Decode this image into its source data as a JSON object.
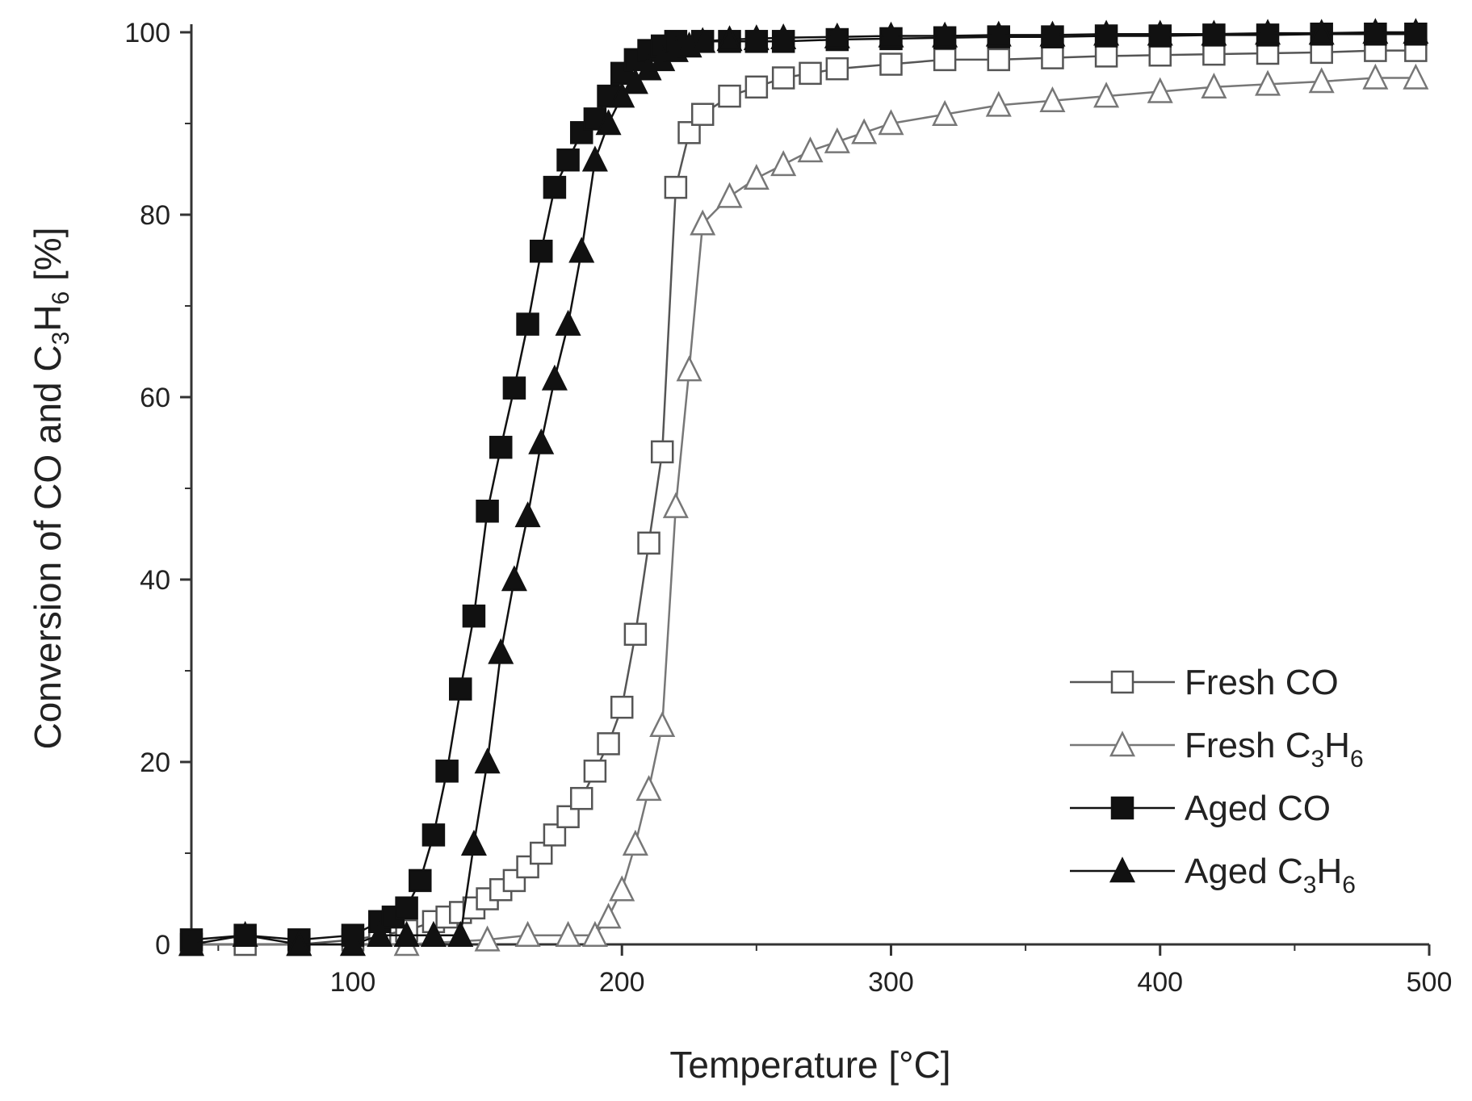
{
  "chart_data": {
    "type": "line",
    "xlabel": "Temperature [°C]",
    "ylabel": "Conversion of CO and C3H6 [%]",
    "xlim": [
      40,
      500
    ],
    "ylim": [
      0,
      100
    ],
    "xticks": [
      100,
      200,
      300,
      400,
      500
    ],
    "yticks": [
      0,
      20,
      40,
      60,
      80,
      100
    ],
    "grid": false,
    "legend_position": "bottom-right",
    "series": [
      {
        "name": "Fresh CO",
        "marker": "open-square",
        "color": "#555555",
        "x": [
          40,
          60,
          80,
          100,
          110,
          120,
          130,
          135,
          140,
          145,
          150,
          155,
          160,
          165,
          170,
          175,
          180,
          185,
          190,
          195,
          200,
          205,
          210,
          215,
          220,
          225,
          230,
          240,
          250,
          260,
          270,
          280,
          300,
          320,
          340,
          360,
          380,
          400,
          420,
          440,
          460,
          480,
          495
        ],
        "y": [
          0,
          0,
          0,
          0.5,
          1,
          1.5,
          2.5,
          3,
          3.5,
          4,
          5,
          6,
          7,
          8.5,
          10,
          12,
          14,
          16,
          19,
          22,
          26,
          34,
          44,
          54,
          83,
          89,
          91,
          93,
          94,
          95,
          95.5,
          96,
          96.5,
          97,
          97,
          97.2,
          97.4,
          97.5,
          97.6,
          97.7,
          97.8,
          98,
          98
        ]
      },
      {
        "name": "Fresh C3H6",
        "name_parts": [
          "Fresh C",
          "3",
          "H",
          "6"
        ],
        "marker": "open-triangle",
        "color": "#777777",
        "x": [
          40,
          80,
          120,
          150,
          165,
          180,
          190,
          195,
          200,
          205,
          210,
          215,
          220,
          225,
          230,
          240,
          250,
          260,
          270,
          280,
          290,
          300,
          320,
          340,
          360,
          380,
          400,
          420,
          440,
          460,
          480,
          495
        ],
        "y": [
          0,
          0,
          0,
          0.5,
          1,
          1,
          1,
          3,
          6,
          11,
          17,
          24,
          48,
          63,
          79,
          82,
          84,
          85.5,
          87,
          88,
          89,
          90,
          91,
          92,
          92.5,
          93,
          93.5,
          94,
          94.3,
          94.6,
          95,
          95
        ]
      },
      {
        "name": "Aged CO",
        "marker": "filled-square",
        "color": "#111111",
        "x": [
          40,
          60,
          80,
          100,
          110,
          115,
          120,
          125,
          130,
          135,
          140,
          145,
          150,
          155,
          160,
          165,
          170,
          175,
          180,
          185,
          190,
          195,
          200,
          205,
          210,
          215,
          220,
          230,
          240,
          250,
          260,
          280,
          300,
          320,
          340,
          360,
          380,
          400,
          420,
          440,
          460,
          480,
          495
        ],
        "y": [
          0.5,
          1,
          0.5,
          1,
          2.5,
          3,
          4,
          7,
          12,
          19,
          28,
          36,
          47.5,
          54.5,
          61,
          68,
          76,
          83,
          86,
          89,
          90.5,
          93,
          95.5,
          97,
          98,
          98.5,
          99,
          99,
          99,
          99,
          99,
          99.2,
          99.3,
          99.4,
          99.5,
          99.5,
          99.6,
          99.6,
          99.7,
          99.7,
          99.8,
          99.8,
          99.8
        ]
      },
      {
        "name": "Aged C3H6",
        "name_parts": [
          "Aged C",
          "3",
          "H",
          "6"
        ],
        "marker": "filled-triangle",
        "color": "#111111",
        "x": [
          40,
          60,
          80,
          100,
          110,
          120,
          130,
          140,
          145,
          150,
          155,
          160,
          165,
          170,
          175,
          180,
          185,
          190,
          195,
          200,
          205,
          210,
          215,
          220,
          225,
          230,
          240,
          250,
          260,
          280,
          300,
          320,
          340,
          360,
          380,
          400,
          420,
          440,
          460,
          480,
          495
        ],
        "y": [
          0,
          1,
          0,
          0,
          1,
          1,
          1,
          1,
          11,
          20,
          32,
          40,
          47,
          55,
          62,
          68,
          76,
          86,
          90,
          93,
          94.5,
          96,
          97,
          98,
          98.5,
          99,
          99.2,
          99.3,
          99.4,
          99.5,
          99.6,
          99.6,
          99.7,
          99.7,
          99.8,
          99.8,
          99.8,
          99.9,
          99.9,
          100,
          100
        ]
      }
    ]
  }
}
